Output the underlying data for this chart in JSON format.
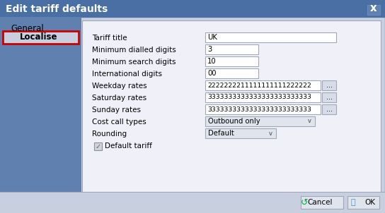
{
  "title": "Edit tariff defaults",
  "title_bar_color": "#4a6fa5",
  "title_text_color": "#ffffff",
  "title_font_size": 10,
  "bg_color": "#c8d0e0",
  "dialog_bg": "#dce4f0",
  "panel_bg": "#f0f0f0",
  "sidebar_bg": "#6080b0",
  "tab_general_text": "General",
  "tab_localise_text": "Localise",
  "tab_localise_bg": "#c8d0e0",
  "tab_localise_border": "#cc0000",
  "fields": [
    {
      "label": "Tariff title",
      "value": "UK",
      "type": "text_wide"
    },
    {
      "label": "Minimum dialled digits",
      "value": "3",
      "type": "text_narrow"
    },
    {
      "label": "Minimum search digits",
      "value": "10",
      "type": "text_narrow"
    },
    {
      "label": "International digits",
      "value": "00",
      "type": "text_narrow"
    },
    {
      "label": "Weekday rates",
      "value": "2222222211111111111222222",
      "type": "text_with_btn"
    },
    {
      "label": "Saturday rates",
      "value": "3333333333333333333333333",
      "type": "text_with_btn"
    },
    {
      "label": "Sunday rates",
      "value": "3333333333333333333333333",
      "type": "text_with_btn"
    },
    {
      "label": "Cost call types",
      "value": "Outbound only",
      "type": "dropdown"
    },
    {
      "label": "Rounding",
      "value": "Default",
      "type": "dropdown_narrow"
    }
  ],
  "checkbox_label": "Default tariff",
  "checkbox_checked": true,
  "btn_cancel_text": "Cancel",
  "btn_ok_text": "OK",
  "input_bg": "#ffffff",
  "input_border": "#a0a8b8",
  "field_font_size": 7.5,
  "label_color": "#000000",
  "close_btn_color": "#4a6fa5"
}
